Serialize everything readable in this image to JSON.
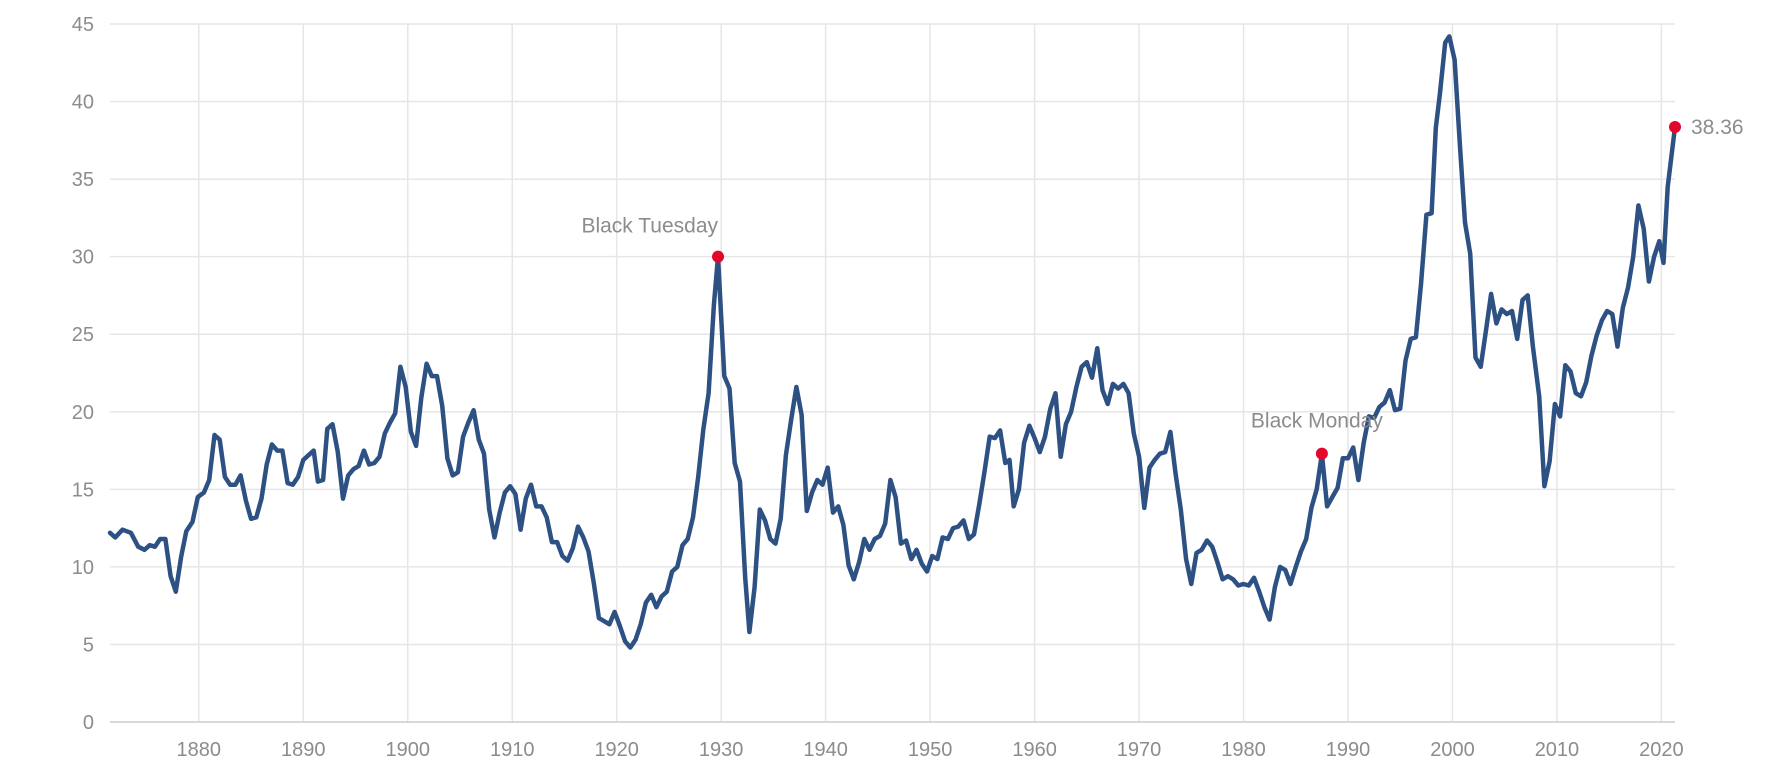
{
  "chart_data": {
    "type": "line",
    "title": "",
    "xlabel": "",
    "ylabel": "",
    "xlim": [
      1871.5,
      2021.3
    ],
    "ylim": [
      0,
      45
    ],
    "grid": true,
    "legend": "none",
    "x_ticks": [
      1880,
      1890,
      1900,
      1910,
      1920,
      1930,
      1940,
      1950,
      1960,
      1970,
      1980,
      1990,
      2000,
      2010,
      2020
    ],
    "y_ticks": [
      0,
      5,
      10,
      15,
      20,
      25,
      30,
      35,
      40,
      45
    ],
    "colors": {
      "series": "#2e5184",
      "marker": "#e3072b",
      "grid": "#e6e6e6",
      "text": "#8c8c8c"
    },
    "series": [
      {
        "points": [
          [
            1871.5,
            12.2
          ],
          [
            1872,
            11.9
          ],
          [
            1872.7,
            12.4
          ],
          [
            1873.5,
            12.2
          ],
          [
            1874.2,
            11.3
          ],
          [
            1874.8,
            11.1
          ],
          [
            1875.3,
            11.4
          ],
          [
            1875.8,
            11.3
          ],
          [
            1876.3,
            11.8
          ],
          [
            1876.8,
            11.8
          ],
          [
            1877.3,
            9.4
          ],
          [
            1877.8,
            8.4
          ],
          [
            1878.3,
            10.6
          ],
          [
            1878.8,
            12.3
          ],
          [
            1879.4,
            12.9
          ],
          [
            1879.9,
            14.5
          ],
          [
            1880.5,
            14.8
          ],
          [
            1881,
            15.6
          ],
          [
            1881.5,
            18.5
          ],
          [
            1882,
            18.2
          ],
          [
            1882.5,
            15.8
          ],
          [
            1883,
            15.3
          ],
          [
            1883.5,
            15.3
          ],
          [
            1884,
            15.9
          ],
          [
            1884.5,
            14.3
          ],
          [
            1885,
            13.1
          ],
          [
            1885.5,
            13.2
          ],
          [
            1886,
            14.4
          ],
          [
            1886.5,
            16.6
          ],
          [
            1887,
            17.9
          ],
          [
            1887.5,
            17.5
          ],
          [
            1888,
            17.5
          ],
          [
            1888.5,
            15.4
          ],
          [
            1889,
            15.3
          ],
          [
            1889.5,
            15.8
          ],
          [
            1890,
            16.9
          ],
          [
            1890.5,
            17.2
          ],
          [
            1891,
            17.5
          ],
          [
            1891.4,
            15.5
          ],
          [
            1891.9,
            15.6
          ],
          [
            1892.3,
            18.9
          ],
          [
            1892.8,
            19.2
          ],
          [
            1893.3,
            17.4
          ],
          [
            1893.8,
            14.4
          ],
          [
            1894.3,
            15.9
          ],
          [
            1894.8,
            16.3
          ],
          [
            1895.3,
            16.5
          ],
          [
            1895.8,
            17.5
          ],
          [
            1896.3,
            16.6
          ],
          [
            1896.8,
            16.7
          ],
          [
            1897.3,
            17.1
          ],
          [
            1897.8,
            18.6
          ],
          [
            1898.3,
            19.3
          ],
          [
            1898.8,
            19.9
          ],
          [
            1899.3,
            22.9
          ],
          [
            1899.8,
            21.6
          ],
          [
            1900.3,
            18.7
          ],
          [
            1900.8,
            17.8
          ],
          [
            1901.3,
            20.9
          ],
          [
            1901.8,
            23.1
          ],
          [
            1902.3,
            22.3
          ],
          [
            1902.8,
            22.3
          ],
          [
            1903.3,
            20.4
          ],
          [
            1903.8,
            17.0
          ],
          [
            1904.3,
            15.9
          ],
          [
            1904.8,
            16.1
          ],
          [
            1905.3,
            18.4
          ],
          [
            1905.8,
            19.3
          ],
          [
            1906.3,
            20.1
          ],
          [
            1906.8,
            18.2
          ],
          [
            1907.3,
            17.3
          ],
          [
            1907.8,
            13.7
          ],
          [
            1908.3,
            11.9
          ],
          [
            1908.8,
            13.5
          ],
          [
            1909.3,
            14.8
          ],
          [
            1909.8,
            15.2
          ],
          [
            1910.3,
            14.7
          ],
          [
            1910.8,
            12.4
          ],
          [
            1911.3,
            14.4
          ],
          [
            1911.8,
            15.3
          ],
          [
            1912.3,
            13.9
          ],
          [
            1912.8,
            13.9
          ],
          [
            1913.3,
            13.2
          ],
          [
            1913.8,
            11.6
          ],
          [
            1914.3,
            11.6
          ],
          [
            1914.8,
            10.7
          ],
          [
            1915.3,
            10.4
          ],
          [
            1915.8,
            11.2
          ],
          [
            1916.3,
            12.6
          ],
          [
            1916.8,
            11.9
          ],
          [
            1917.3,
            11.0
          ],
          [
            1917.8,
            9.0
          ],
          [
            1918.3,
            6.7
          ],
          [
            1918.8,
            6.5
          ],
          [
            1919.3,
            6.3
          ],
          [
            1919.8,
            7.1
          ],
          [
            1920.3,
            6.2
          ],
          [
            1920.8,
            5.2
          ],
          [
            1921.3,
            4.8
          ],
          [
            1921.8,
            5.3
          ],
          [
            1922.3,
            6.3
          ],
          [
            1922.8,
            7.7
          ],
          [
            1923.3,
            8.2
          ],
          [
            1923.8,
            7.4
          ],
          [
            1924.3,
            8.1
          ],
          [
            1924.8,
            8.4
          ],
          [
            1925.3,
            9.7
          ],
          [
            1925.8,
            10.0
          ],
          [
            1926.3,
            11.4
          ],
          [
            1926.8,
            11.8
          ],
          [
            1927.3,
            13.2
          ],
          [
            1927.8,
            15.8
          ],
          [
            1928.3,
            18.9
          ],
          [
            1928.8,
            21.2
          ],
          [
            1929.3,
            26.9
          ],
          [
            1929.7,
            30.0
          ],
          [
            1930.3,
            22.3
          ],
          [
            1930.8,
            21.5
          ],
          [
            1931.3,
            16.7
          ],
          [
            1931.8,
            15.5
          ],
          [
            1932.3,
            9.3
          ],
          [
            1932.7,
            5.8
          ],
          [
            1933.2,
            8.7
          ],
          [
            1933.7,
            13.7
          ],
          [
            1934.2,
            13.0
          ],
          [
            1934.7,
            11.8
          ],
          [
            1935.2,
            11.5
          ],
          [
            1935.7,
            13.1
          ],
          [
            1936.2,
            17.2
          ],
          [
            1936.7,
            19.5
          ],
          [
            1937.2,
            21.6
          ],
          [
            1937.7,
            19.8
          ],
          [
            1938.2,
            13.6
          ],
          [
            1938.7,
            14.8
          ],
          [
            1939.2,
            15.6
          ],
          [
            1939.7,
            15.3
          ],
          [
            1940.2,
            16.4
          ],
          [
            1940.7,
            13.5
          ],
          [
            1941.2,
            13.9
          ],
          [
            1941.7,
            12.7
          ],
          [
            1942.2,
            10.1
          ],
          [
            1942.7,
            9.2
          ],
          [
            1943.2,
            10.3
          ],
          [
            1943.7,
            11.8
          ],
          [
            1944.2,
            11.1
          ],
          [
            1944.7,
            11.8
          ],
          [
            1945.2,
            12.0
          ],
          [
            1945.7,
            12.8
          ],
          [
            1946.2,
            15.6
          ],
          [
            1946.7,
            14.5
          ],
          [
            1947.2,
            11.5
          ],
          [
            1947.7,
            11.7
          ],
          [
            1948.2,
            10.5
          ],
          [
            1948.7,
            11.1
          ],
          [
            1949.2,
            10.2
          ],
          [
            1949.7,
            9.7
          ],
          [
            1950.2,
            10.7
          ],
          [
            1950.7,
            10.5
          ],
          [
            1951.2,
            11.9
          ],
          [
            1951.7,
            11.8
          ],
          [
            1952.2,
            12.5
          ],
          [
            1952.7,
            12.6
          ],
          [
            1953.2,
            13.0
          ],
          [
            1953.7,
            11.8
          ],
          [
            1954.2,
            12.1
          ],
          [
            1954.7,
            14.0
          ],
          [
            1955.2,
            16.1
          ],
          [
            1955.7,
            18.4
          ],
          [
            1956.2,
            18.3
          ],
          [
            1956.7,
            18.8
          ],
          [
            1957.2,
            16.7
          ],
          [
            1957.6,
            16.9
          ],
          [
            1958,
            13.9
          ],
          [
            1958.5,
            15.0
          ],
          [
            1959,
            18.0
          ],
          [
            1959.5,
            19.1
          ],
          [
            1960,
            18.3
          ],
          [
            1960.5,
            17.4
          ],
          [
            1961,
            18.4
          ],
          [
            1961.5,
            20.2
          ],
          [
            1962,
            21.2
          ],
          [
            1962.5,
            17.1
          ],
          [
            1963,
            19.2
          ],
          [
            1963.5,
            20.0
          ],
          [
            1964,
            21.6
          ],
          [
            1964.5,
            22.9
          ],
          [
            1965,
            23.2
          ],
          [
            1965.5,
            22.2
          ],
          [
            1966,
            24.1
          ],
          [
            1966.5,
            21.4
          ],
          [
            1967,
            20.5
          ],
          [
            1967.5,
            21.8
          ],
          [
            1968,
            21.5
          ],
          [
            1968.5,
            21.8
          ],
          [
            1969,
            21.2
          ],
          [
            1969.5,
            18.6
          ],
          [
            1970,
            17.1
          ],
          [
            1970.5,
            13.8
          ],
          [
            1971,
            16.4
          ],
          [
            1971.5,
            16.9
          ],
          [
            1972,
            17.3
          ],
          [
            1972.5,
            17.4
          ],
          [
            1973,
            18.7
          ],
          [
            1973.5,
            16.0
          ],
          [
            1974,
            13.7
          ],
          [
            1974.5,
            10.5
          ],
          [
            1975,
            8.9
          ],
          [
            1975.5,
            10.9
          ],
          [
            1976,
            11.1
          ],
          [
            1976.5,
            11.7
          ],
          [
            1977,
            11.3
          ],
          [
            1977.5,
            10.3
          ],
          [
            1978,
            9.2
          ],
          [
            1978.5,
            9.4
          ],
          [
            1979,
            9.2
          ],
          [
            1979.5,
            8.8
          ],
          [
            1980,
            8.9
          ],
          [
            1980.5,
            8.8
          ],
          [
            1981,
            9.3
          ],
          [
            1981.5,
            8.4
          ],
          [
            1982,
            7.4
          ],
          [
            1982.5,
            6.6
          ],
          [
            1983,
            8.7
          ],
          [
            1983.5,
            10.0
          ],
          [
            1984,
            9.8
          ],
          [
            1984.5,
            8.9
          ],
          [
            1985,
            10.0
          ],
          [
            1985.5,
            11.0
          ],
          [
            1986,
            11.8
          ],
          [
            1986.5,
            13.8
          ],
          [
            1987,
            15.0
          ],
          [
            1987.5,
            17.3
          ],
          [
            1988,
            13.9
          ],
          [
            1988.5,
            14.5
          ],
          [
            1989,
            15.1
          ],
          [
            1989.5,
            17.0
          ],
          [
            1990,
            17.0
          ],
          [
            1990.5,
            17.7
          ],
          [
            1991,
            15.6
          ],
          [
            1991.5,
            18.0
          ],
          [
            1992,
            19.7
          ],
          [
            1992.5,
            19.6
          ],
          [
            1993,
            20.3
          ],
          [
            1993.5,
            20.6
          ],
          [
            1994,
            21.4
          ],
          [
            1994.5,
            20.1
          ],
          [
            1995,
            20.2
          ],
          [
            1995.5,
            23.3
          ],
          [
            1996,
            24.7
          ],
          [
            1996.5,
            24.8
          ],
          [
            1997,
            28.3
          ],
          [
            1997.5,
            32.7
          ],
          [
            1998,
            32.8
          ],
          [
            1998.4,
            38.3
          ],
          [
            1998.8,
            40.5
          ],
          [
            1999.3,
            43.8
          ],
          [
            1999.7,
            44.2
          ],
          [
            2000.2,
            42.7
          ],
          [
            2000.7,
            37.3
          ],
          [
            2001.2,
            32.2
          ],
          [
            2001.7,
            30.2
          ],
          [
            2002.2,
            23.5
          ],
          [
            2002.7,
            22.9
          ],
          [
            2003.2,
            25.2
          ],
          [
            2003.7,
            27.6
          ],
          [
            2004.2,
            25.7
          ],
          [
            2004.7,
            26.6
          ],
          [
            2005.2,
            26.3
          ],
          [
            2005.7,
            26.5
          ],
          [
            2006.2,
            24.7
          ],
          [
            2006.7,
            27.2
          ],
          [
            2007.2,
            27.5
          ],
          [
            2007.7,
            24.2
          ],
          [
            2008.3,
            21.0
          ],
          [
            2008.8,
            15.2
          ],
          [
            2009.3,
            16.8
          ],
          [
            2009.8,
            20.5
          ],
          [
            2010.3,
            19.7
          ],
          [
            2010.8,
            23.0
          ],
          [
            2011.3,
            22.6
          ],
          [
            2011.8,
            21.2
          ],
          [
            2012.3,
            21.0
          ],
          [
            2012.8,
            21.9
          ],
          [
            2013.3,
            23.6
          ],
          [
            2013.8,
            24.9
          ],
          [
            2014.3,
            25.9
          ],
          [
            2014.8,
            26.5
          ],
          [
            2015.3,
            26.3
          ],
          [
            2015.8,
            24.2
          ],
          [
            2016.3,
            26.7
          ],
          [
            2016.8,
            28.0
          ],
          [
            2017.3,
            30.0
          ],
          [
            2017.8,
            33.3
          ],
          [
            2018.3,
            31.8
          ],
          [
            2018.8,
            28.4
          ],
          [
            2019.3,
            30.0
          ],
          [
            2019.8,
            31.0
          ],
          [
            2020.2,
            29.6
          ],
          [
            2020.6,
            34.5
          ],
          [
            2021.3,
            38.36
          ]
        ]
      }
    ],
    "annotations": [
      {
        "label": "Black Tuesday",
        "x": 1929.7,
        "y": 30.0,
        "placement": "above-left"
      },
      {
        "label": "Black Monday",
        "x": 1987.5,
        "y": 17.3,
        "placement": "above"
      },
      {
        "label": "38.36",
        "x": 2021.3,
        "y": 38.36,
        "placement": "right"
      }
    ]
  }
}
